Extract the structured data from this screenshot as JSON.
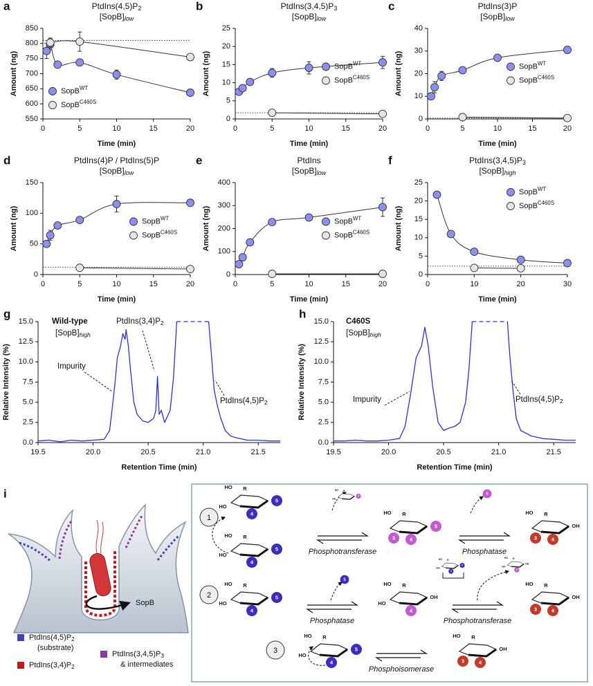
{
  "chart_data": [
    {
      "panel": "a",
      "type": "scatter",
      "title": {
        "text": "PtdIns(4,5)P",
        "sub": "2"
      },
      "title_color": "#e6177a",
      "subtitle": {
        "text": "[SopB]",
        "sub": "low",
        "sub_italic": true
      },
      "xlabel": "Time (min)",
      "ylabel": "Amount (ng)",
      "xlim": [
        0,
        20
      ],
      "xticks": [
        0,
        5,
        10,
        15,
        20
      ],
      "ylim": [
        550,
        850
      ],
      "yticks": [
        550,
        600,
        650,
        700,
        750,
        800,
        850
      ],
      "reference_line": 810,
      "legend": "lower left",
      "series": [
        {
          "name": "SopB",
          "name_sup": "WT",
          "color": "#8c8ff0",
          "x": [
            0.5,
            1,
            2,
            5,
            10,
            20
          ],
          "values": [
            775,
            797,
            730,
            737,
            697,
            637
          ],
          "errors": [
            25,
            18,
            0,
            0,
            15,
            0
          ]
        },
        {
          "name": "SopB",
          "name_sup": "C460S",
          "color": "#e4e4e4",
          "x": [
            1,
            5,
            20
          ],
          "values": [
            803,
            806,
            755
          ],
          "errors": [
            15,
            32,
            0
          ]
        }
      ]
    },
    {
      "panel": "b",
      "type": "scatter",
      "title": {
        "text": "PtdIns(3,4,5)P",
        "sub": "3"
      },
      "title_color": "#e6177a",
      "subtitle": {
        "text": "[SopB]",
        "sub": "low",
        "sub_italic": true
      },
      "xlabel": "Time (min)",
      "ylabel": "Amount (ng)",
      "xlim": [
        0,
        20
      ],
      "xticks": [
        0,
        5,
        10,
        15,
        20
      ],
      "ylim": [
        0,
        25
      ],
      "yticks": [
        0,
        5,
        10,
        15,
        20,
        25
      ],
      "reference_line": 1.7,
      "legend": "center right",
      "series": [
        {
          "name": "SopB",
          "name_sup": "WT",
          "color": "#8c8ff0",
          "x": [
            0.5,
            1,
            2,
            5,
            10,
            20
          ],
          "values": [
            7.5,
            8.5,
            10.2,
            12.7,
            14.1,
            15.6
          ],
          "errors": [
            0.7,
            0.8,
            0.8,
            1.2,
            1.7,
            1.7
          ]
        },
        {
          "name": "SopB",
          "name_sup": "C460S",
          "color": "#e4e4e4",
          "x": [
            5,
            20
          ],
          "values": [
            1.7,
            1.4
          ],
          "errors": [
            0,
            0
          ]
        }
      ]
    },
    {
      "panel": "c",
      "type": "scatter",
      "title": {
        "text": "PtdIns(3)P"
      },
      "title_color": "#e6177a",
      "subtitle": {
        "text": "[SopB]",
        "sub": "low",
        "sub_italic": true
      },
      "xlabel": "Time (min)",
      "ylabel": "Amount (ng)",
      "xlim": [
        0,
        20
      ],
      "xticks": [
        0,
        5,
        10,
        15,
        20
      ],
      "ylim": [
        0,
        40
      ],
      "yticks": [
        0,
        10,
        20,
        30,
        40
      ],
      "reference_line": 0.4,
      "legend": "center right",
      "series": [
        {
          "name": "SopB",
          "name_sup": "WT",
          "color": "#8c8ff0",
          "x": [
            0.5,
            1,
            2,
            5,
            10,
            20
          ],
          "values": [
            10,
            14,
            19,
            21.5,
            27,
            30.5
          ],
          "errors": [
            1,
            2.5,
            2,
            0,
            0,
            1.5
          ]
        },
        {
          "name": "SopB",
          "name_sup": "C460S",
          "color": "#e4e4e4",
          "x": [
            5,
            20
          ],
          "values": [
            0.8,
            0.4
          ],
          "errors": [
            0,
            0
          ]
        }
      ]
    },
    {
      "panel": "d",
      "type": "scatter",
      "title": {
        "text": "PtdIns(4)P / PtdIns(5)P"
      },
      "title_color": "#e6177a",
      "subtitle": {
        "text": "[SopB]",
        "sub": "low",
        "sub_italic": true
      },
      "xlabel": "Time (min)",
      "ylabel": "Amount (ng)",
      "xlim": [
        0,
        20
      ],
      "xticks": [
        0,
        5,
        10,
        15,
        20
      ],
      "ylim": [
        0,
        150
      ],
      "yticks": [
        0,
        50,
        100,
        150
      ],
      "reference_line": 12,
      "legend": "center right",
      "series": [
        {
          "name": "SopB",
          "name_sup": "WT",
          "color": "#8c8ff0",
          "x": [
            0.5,
            1,
            2,
            5,
            10,
            20
          ],
          "values": [
            50,
            64,
            80,
            89,
            115,
            117
          ],
          "errors": [
            4,
            8,
            5,
            0,
            13,
            0
          ]
        },
        {
          "name": "SopB",
          "name_sup": "C460S",
          "color": "#e4e4e4",
          "x": [
            5,
            20
          ],
          "values": [
            11,
            9
          ],
          "errors": [
            0,
            0
          ]
        }
      ]
    },
    {
      "panel": "e",
      "type": "scatter",
      "title": {
        "text": "PtdIns"
      },
      "title_color": "#e6177a",
      "subtitle": {
        "text": "[SopB]",
        "sub": "low",
        "sub_italic": true
      },
      "xlabel": "Time (min)",
      "ylabel": "Amount (ng)",
      "xlim": [
        0,
        20
      ],
      "xticks": [
        0,
        5,
        10,
        15,
        20
      ],
      "ylim": [
        0,
        400
      ],
      "yticks": [
        0,
        100,
        200,
        300,
        400
      ],
      "legend": "center right",
      "series": [
        {
          "name": "SopB",
          "name_sup": "WT",
          "color": "#8c8ff0",
          "x": [
            0.5,
            1,
            2,
            5,
            10,
            20
          ],
          "values": [
            45,
            75,
            140,
            228,
            248,
            293
          ],
          "errors": [
            0,
            15,
            0,
            0,
            0,
            40
          ]
        },
        {
          "name": "SopB",
          "name_sup": "C460S",
          "color": "#e4e4e4",
          "x": [
            5,
            20
          ],
          "values": [
            3,
            3
          ],
          "errors": [
            0,
            0
          ]
        }
      ]
    },
    {
      "panel": "f",
      "type": "scatter",
      "title": {
        "text": "PtdIns(3,4,5)P",
        "sub": "3"
      },
      "title_color": "#8b1fa8",
      "subtitle": {
        "text": "[SopB]",
        "sub": "high",
        "sub_italic": true
      },
      "xlabel": "Time (min)",
      "ylabel": "Amount (ng)",
      "xlim": [
        0,
        30
      ],
      "xticks": [
        0,
        10,
        20,
        30
      ],
      "ylim": [
        0,
        25
      ],
      "yticks": [
        0,
        5,
        10,
        15,
        20,
        25
      ],
      "reference_line": 2.3,
      "legend": "upper right",
      "series": [
        {
          "name": "SopB",
          "name_sup": "WT",
          "color": "#8c8ff0",
          "x": [
            2,
            5,
            10,
            20,
            30
          ],
          "values": [
            21.7,
            11,
            6.2,
            4,
            3.1
          ],
          "errors": [
            0,
            0,
            0,
            0,
            0
          ]
        },
        {
          "name": "SopB",
          "name_sup": "C460S",
          "color": "#e4e4e4",
          "x": [
            10,
            20
          ],
          "values": [
            1.8,
            1.7
          ],
          "errors": [
            0,
            0
          ]
        }
      ]
    },
    {
      "panel": "g",
      "type": "line",
      "xlabel": "Retention Time (min)",
      "ylabel": "Relative Intensity (%)",
      "xlim": [
        19.5,
        21.7
      ],
      "xticks": [
        19.5,
        {
          "value": 20,
          "label": "20.0"
        },
        20.5,
        {
          "value": 21,
          "label": "21.0"
        },
        21.5
      ],
      "ylim": [
        0,
        15
      ],
      "yticks": [
        {
          "value": 0,
          "label": "0.0"
        },
        2.5,
        {
          "value": 5,
          "label": "5.0"
        },
        7.5,
        {
          "value": 10,
          "label": "10.0"
        },
        12.5,
        {
          "value": 15,
          "label": "15.0"
        }
      ],
      "saturated_span": [
        20.76,
        21.05
      ],
      "annotations": [
        {
          "text": "Wild-type",
          "color": "#2b2ee6",
          "bold": true
        },
        {
          "text": "[SopB]",
          "sub": "high",
          "sub_italic": true
        },
        {
          "text": "PtdIns(3,4)P",
          "sub": "2",
          "color": "#7a1fa2"
        },
        {
          "text": "Impurity"
        },
        {
          "text": "PtdIns(4,5)P",
          "sub": "2",
          "color": "#7a1fa2"
        }
      ],
      "series": [
        {
          "color": "#2b2ee6",
          "x": [
            19.5,
            19.6,
            19.7,
            19.8,
            19.9,
            20.0,
            20.1,
            20.15,
            20.18,
            20.2,
            20.22,
            20.25,
            20.27,
            20.29,
            20.3,
            20.32,
            20.34,
            20.37,
            20.4,
            20.45,
            20.5,
            20.55,
            20.57,
            20.585,
            20.6,
            20.62,
            20.65,
            20.7,
            20.73,
            20.76,
            20.9,
            21.05,
            21.08,
            21.1,
            21.13,
            21.16,
            21.2,
            21.25,
            21.3,
            21.4,
            21.5,
            21.6,
            21.7
          ],
          "values": [
            0.2,
            0.3,
            0.1,
            0.3,
            0.2,
            0.3,
            0.4,
            1.5,
            5,
            7.5,
            10.5,
            12,
            13.5,
            12.8,
            14,
            12,
            9,
            5,
            3.5,
            2.7,
            2.5,
            3,
            4,
            8.2,
            3.5,
            4,
            2.5,
            4,
            8,
            15,
            null,
            15,
            10,
            6.5,
            4.5,
            3,
            1.5,
            0.8,
            0.6,
            0.3,
            0.3,
            0.2,
            0.2
          ]
        }
      ]
    },
    {
      "panel": "h",
      "type": "line",
      "xlabel": "Retention Time (min)",
      "ylabel": "Relative Intensity (%)",
      "xlim": [
        19.5,
        21.7
      ],
      "xticks": [
        19.5,
        {
          "value": 20,
          "label": "20.0"
        },
        20.5,
        {
          "value": 21,
          "label": "21.0"
        },
        21.5
      ],
      "ylim": [
        0,
        15
      ],
      "yticks": [
        {
          "value": 0,
          "label": "0.0"
        },
        2.5,
        {
          "value": 5,
          "label": "5.0"
        },
        7.5,
        {
          "value": 10,
          "label": "10.0"
        },
        12.5,
        {
          "value": 15,
          "label": "15.0"
        }
      ],
      "saturated_span": [
        20.76,
        21.08
      ],
      "annotations": [
        {
          "text": "C460S",
          "color": "#808080",
          "bold": true
        },
        {
          "text": "[SopB]",
          "sub": "high",
          "sub_italic": true
        },
        {
          "text": "Impurity"
        },
        {
          "text": "PtdIns(4,5)P",
          "sub": "2",
          "color": "#7a1fa2"
        }
      ],
      "series": [
        {
          "color": "#2b2ee6",
          "x": [
            19.5,
            19.6,
            19.7,
            19.8,
            19.9,
            20.0,
            20.1,
            20.15,
            20.2,
            20.25,
            20.3,
            20.33,
            20.36,
            20.4,
            20.45,
            20.5,
            20.55,
            20.6,
            20.65,
            20.7,
            20.73,
            20.76,
            20.9,
            21.08,
            21.1,
            21.13,
            21.16,
            21.2,
            21.3,
            21.4,
            21.5,
            21.6,
            21.7
          ],
          "values": [
            0.2,
            0.2,
            0.3,
            0.2,
            0.2,
            0.3,
            0.5,
            2,
            6,
            10.5,
            12,
            14.3,
            12,
            7,
            2.5,
            1.5,
            1.8,
            2,
            2.5,
            5,
            9,
            15,
            null,
            15,
            11,
            6.5,
            3,
            1.5,
            0.8,
            0.5,
            0.4,
            0.3,
            0.3
          ]
        }
      ]
    }
  ],
  "diagram": {
    "panel": "i",
    "cell_label": "SopB",
    "legend": [
      {
        "text": "PtdIns(4,5)P",
        "sub": "2",
        "extra": "(substrate)",
        "color": "#3c44b8"
      },
      {
        "text": "PtdIns(3,4)P",
        "sub": "2",
        "color": "#c8161d"
      },
      {
        "text": "PtdIns(3,4,5)P",
        "sub": "3",
        "extra": "& intermediates",
        "color": "#8a3a9e"
      }
    ],
    "steps": [
      {
        "label": "1",
        "enzymes": [
          "Phosphotransferase",
          "Phosphatase"
        ],
        "molecules": [
          {
            "ring": [
              "HO",
              "R",
              "HO"
            ],
            "phosphates": [
              {
                "label": "4",
                "color": "#3b2dbf"
              },
              {
                "label": "5",
                "color": "#3b2dbf"
              }
            ]
          },
          {
            "ring": [
              "HO",
              "R",
              "HO"
            ],
            "phosphates": [
              {
                "label": "4",
                "color": "#3b2dbf"
              },
              {
                "label": "5",
                "color": "#3b2dbf"
              }
            ]
          },
          {
            "ring": [
              "HO",
              "R",
              "HO"
            ],
            "phosphates": [
              {
                "label": "5",
                "color": "#c25bd0"
              }
            ]
          },
          {
            "ring": [
              "HO",
              "R"
            ],
            "phosphates": [
              {
                "label": "3",
                "color": "#c25bd0"
              },
              {
                "label": "4",
                "color": "#c25bd0"
              },
              {
                "label": "5",
                "color": "#c25bd0"
              }
            ]
          },
          {
            "phosphates": [
              {
                "label": "5",
                "color": "#c25bd0"
              }
            ]
          },
          {
            "ring": [
              "HO",
              "R",
              "OH"
            ],
            "phosphates": [
              {
                "label": "3",
                "color": "#c23b2a"
              },
              {
                "label": "4",
                "color": "#c23b2a"
              }
            ]
          }
        ]
      },
      {
        "label": "2",
        "enzymes": [
          "Phosphatase",
          "Phosphotransferase"
        ],
        "molecules": [
          {
            "ring": [
              "HO",
              "R",
              "HO"
            ],
            "phosphates": [
              {
                "label": "4",
                "color": "#3b2dbf"
              },
              {
                "label": "5",
                "color": "#3b2dbf"
              }
            ]
          },
          {
            "phosphates": [
              {
                "label": "5",
                "color": "#3b2dbf"
              }
            ]
          },
          {
            "ring": [
              "HO",
              "R",
              "HO",
              "OH"
            ],
            "phosphates": [
              {
                "label": "4",
                "color": "#c25bd0"
              }
            ]
          },
          {
            "ring": [
              "HO",
              "R",
              "HO"
            ],
            "phosphates": [
              {
                "label": "4",
                "color": "#3b2dbf"
              },
              {
                "label": "5",
                "color": "#3b2dbf"
              }
            ]
          },
          {
            "ring": [
              "HO",
              "R",
              "HO",
              "OH"
            ],
            "phosphates": [
              {
                "label": "4",
                "color": "#c25bd0"
              }
            ]
          },
          {
            "ring": [
              "HO",
              "R",
              "OH"
            ],
            "phosphates": [
              {
                "label": "3",
                "color": "#c23b2a"
              },
              {
                "label": "4",
                "color": "#c23b2a"
              }
            ]
          }
        ]
      },
      {
        "label": "3",
        "enzymes": [
          "Phosphoisomerase"
        ],
        "molecules": [
          {
            "ring": [
              "HO",
              "R",
              "HO"
            ],
            "phosphates": [
              {
                "label": "4",
                "color": "#3b2dbf"
              },
              {
                "label": "5",
                "color": "#3b2dbf"
              }
            ]
          },
          {
            "ring": [
              "HO",
              "R",
              "OH"
            ],
            "phosphates": [
              {
                "label": "3",
                "color": "#c23b2a"
              },
              {
                "label": "4",
                "color": "#c23b2a"
              }
            ]
          }
        ]
      }
    ]
  }
}
